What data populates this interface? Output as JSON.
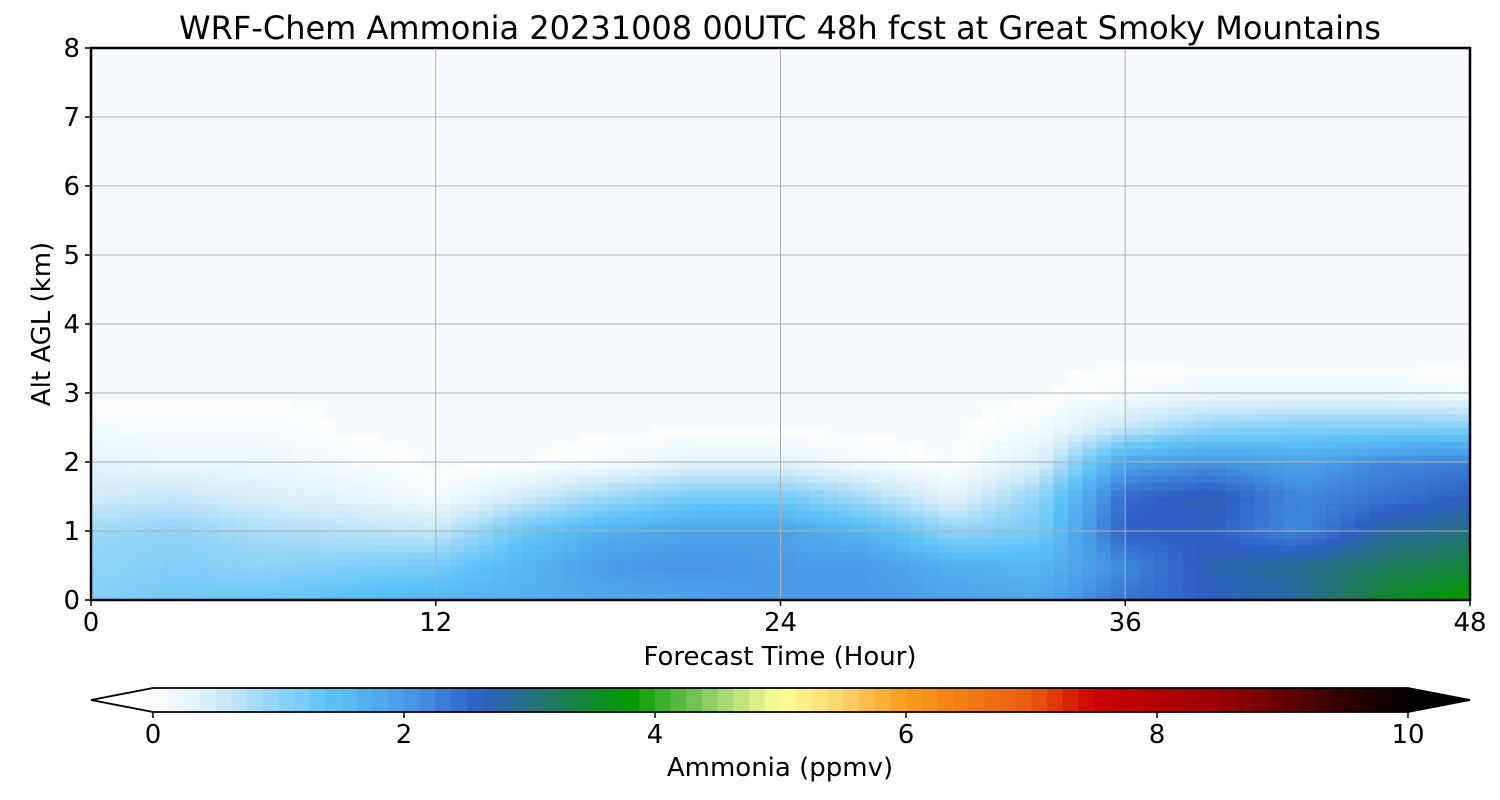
{
  "chart_data": {
    "type": "heatmap",
    "title": "WRF-Chem Ammonia  20231008 00UTC 48h fcst at Great Smoky Mountains",
    "xlabel": "Forecast Time (Hour)",
    "ylabel": "Alt AGL (km)",
    "xlim": [
      0,
      48
    ],
    "ylim": [
      0,
      8
    ],
    "xticks": [
      "0",
      "12",
      "24",
      "36",
      "48"
    ],
    "yticks": [
      "0",
      "1",
      "2",
      "3",
      "4",
      "5",
      "6",
      "7",
      "8"
    ],
    "grid": true,
    "hours": [
      0,
      3,
      6,
      9,
      12,
      15,
      18,
      21,
      24,
      27,
      30,
      33,
      36,
      39,
      42,
      45,
      48
    ],
    "altitudes_km": [
      0,
      0.5,
      1,
      1.5,
      2,
      2.5,
      3,
      3.5,
      4
    ],
    "values_ppmv": [
      [
        1.1,
        1.2,
        1.3,
        1.5,
        1.6,
        1.7,
        1.8,
        1.9,
        2.0,
        2.0,
        1.9,
        1.8,
        2.4,
        2.6,
        2.8,
        3.5,
        3.9
      ],
      [
        1.0,
        1.1,
        1.0,
        1.1,
        1.2,
        1.6,
        2.0,
        2.1,
        2.0,
        2.0,
        1.7,
        1.6,
        2.2,
        2.7,
        2.9,
        3.2,
        3.4
      ],
      [
        0.9,
        1.0,
        0.8,
        0.7,
        0.6,
        1.3,
        1.7,
        1.9,
        1.9,
        1.6,
        1.0,
        1.2,
        2.6,
        2.6,
        2.2,
        2.8,
        3.0
      ],
      [
        0.5,
        0.6,
        0.4,
        0.3,
        0.1,
        0.5,
        0.9,
        1.2,
        1.2,
        0.8,
        0.3,
        1.0,
        2.5,
        2.7,
        2.2,
        2.4,
        2.6
      ],
      [
        0.3,
        0.2,
        0.2,
        0.1,
        0.0,
        0.0,
        0.1,
        0.3,
        0.3,
        0.1,
        0.0,
        0.4,
        1.9,
        2.1,
        1.9,
        2.2,
        2.3
      ],
      [
        0.1,
        0.1,
        0.1,
        0.0,
        0.0,
        0.0,
        0.0,
        0.0,
        0.0,
        0.0,
        0.0,
        0.1,
        0.6,
        1.0,
        1.1,
        1.1,
        1.1
      ],
      [
        0.0,
        0.0,
        0.0,
        0.0,
        0.0,
        0.0,
        0.0,
        0.0,
        0.0,
        0.0,
        0.0,
        0.0,
        0.1,
        0.2,
        0.2,
        0.2,
        0.1
      ],
      [
        0.0,
        0.0,
        0.0,
        0.0,
        0.0,
        0.0,
        0.0,
        0.0,
        0.0,
        0.0,
        0.0,
        0.0,
        0.0,
        0.0,
        0.0,
        0.0,
        0.0
      ],
      [
        0.0,
        0.0,
        0.0,
        0.0,
        0.0,
        0.0,
        0.0,
        0.0,
        0.0,
        0.0,
        0.0,
        0.0,
        0.0,
        0.0,
        0.0,
        0.0,
        0.0
      ]
    ],
    "colorbar": {
      "label": "Ammonia  (ppmv)",
      "min": 0,
      "max": 10,
      "ticks": [
        "0",
        "2",
        "4",
        "6",
        "8",
        "10"
      ],
      "extend": "both",
      "stops": [
        {
          "v": 0.0,
          "c": "#ffffff"
        },
        {
          "v": 0.5,
          "c": "#d2ecf9"
        },
        {
          "v": 1.0,
          "c": "#8fd3f7"
        },
        {
          "v": 1.4,
          "c": "#5ec3f7"
        },
        {
          "v": 2.0,
          "c": "#4a9de8"
        },
        {
          "v": 2.6,
          "c": "#2e5fc4"
        },
        {
          "v": 3.2,
          "c": "#1f7a5e"
        },
        {
          "v": 3.8,
          "c": "#009900"
        },
        {
          "v": 4.5,
          "c": "#9cd36e"
        },
        {
          "v": 5.0,
          "c": "#ffff99"
        },
        {
          "v": 5.5,
          "c": "#fdd36b"
        },
        {
          "v": 6.0,
          "c": "#f89c1c"
        },
        {
          "v": 7.0,
          "c": "#ea5a0f"
        },
        {
          "v": 7.5,
          "c": "#cc0000"
        },
        {
          "v": 8.5,
          "c": "#990000"
        },
        {
          "v": 9.3,
          "c": "#440000"
        },
        {
          "v": 10.0,
          "c": "#000000"
        }
      ],
      "under_color": "#ffffff",
      "over_color": "#000000",
      "fill_floor_color": "#f7fbff"
    }
  }
}
